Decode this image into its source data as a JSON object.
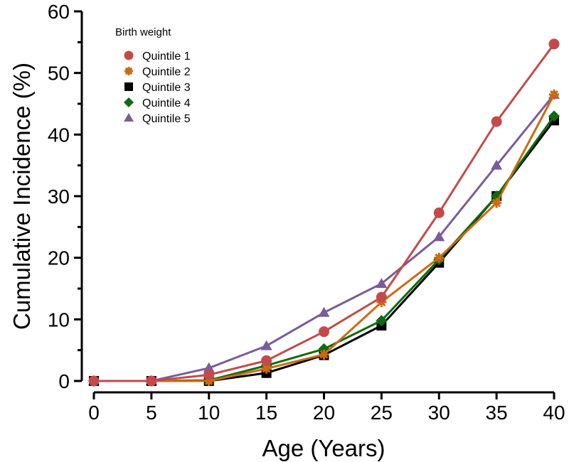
{
  "chart_data": {
    "type": "line",
    "title": "",
    "xlabel": "Age (Years)",
    "ylabel": "Cumulative Incidence (%)",
    "xlim": [
      0,
      40
    ],
    "ylim": [
      0,
      60
    ],
    "x": [
      0,
      5,
      10,
      15,
      20,
      25,
      30,
      35,
      40
    ],
    "xticks": [
      "0",
      "5",
      "10",
      "15",
      "20",
      "25",
      "30",
      "35",
      "40"
    ],
    "yticks": [
      "0",
      "10",
      "20",
      "30",
      "40",
      "50",
      "60"
    ],
    "grid": false,
    "legend": {
      "title": "Birth weight",
      "placement": "top-left"
    },
    "series": [
      {
        "name": "Quintile 1",
        "color": "#c44a4a",
        "marker": "circle",
        "values": [
          0,
          0,
          1.0,
          3.3,
          8.0,
          13.6,
          27.3,
          42.1,
          54.7
        ]
      },
      {
        "name": "Quintile 2",
        "color": "#cc6a10",
        "marker": "asterisk",
        "values": [
          0,
          0,
          0,
          2.0,
          4.3,
          12.8,
          20.0,
          28.9,
          46.5
        ]
      },
      {
        "name": "Quintile 3",
        "color": "#000000",
        "marker": "square",
        "values": [
          0,
          0,
          0,
          1.3,
          4.2,
          9.0,
          19.2,
          30.0,
          42.3
        ]
      },
      {
        "name": "Quintile 4",
        "color": "#0f6b0f",
        "marker": "diamond",
        "values": [
          0,
          0,
          0.1,
          2.5,
          5.2,
          9.8,
          19.7,
          30.0,
          43.0
        ]
      },
      {
        "name": "Quintile 5",
        "color": "#7a5c9a",
        "marker": "triangle",
        "values": [
          0,
          0,
          2.1,
          5.7,
          11.1,
          15.8,
          23.4,
          35.0,
          46.5
        ]
      }
    ]
  }
}
